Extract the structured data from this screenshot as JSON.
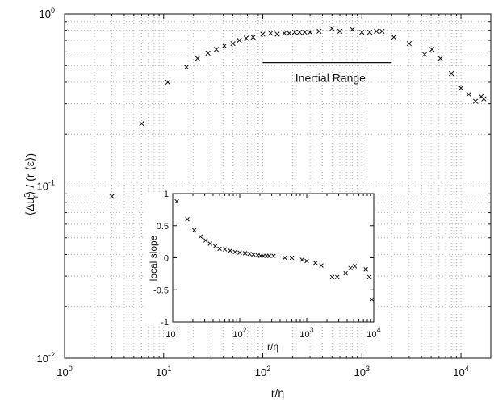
{
  "chart_data": {
    "main": {
      "type": "scatter",
      "marker": "x",
      "xlabel": "r/η",
      "ylabel": "-⟨Δu_r^3⟩ / (r ⟨ε⟩)",
      "xscale": "log",
      "yscale": "log",
      "xlim": [
        1,
        20000
      ],
      "ylim": [
        0.01,
        1
      ],
      "grid": true,
      "x_tick_values": [
        1,
        10,
        100,
        1000,
        10000
      ],
      "y_tick_values": [
        0.01,
        0.1,
        1
      ],
      "x_tick_labels": [
        [
          "10",
          "0"
        ],
        [
          "10",
          "1"
        ],
        [
          "10",
          "2"
        ],
        [
          "10",
          "3"
        ],
        [
          "10",
          "4"
        ]
      ],
      "y_tick_labels": [
        [
          "10",
          "-2"
        ],
        [
          "10",
          "-1"
        ],
        [
          "10",
          "0"
        ]
      ],
      "annotation": {
        "text": "Inertial Range",
        "x_start": 100,
        "x_end": 2000,
        "y": 0.52
      },
      "x": [
        3,
        6,
        11,
        17,
        22,
        28,
        34,
        41,
        50,
        58,
        68,
        80,
        100,
        120,
        140,
        165,
        185,
        210,
        235,
        265,
        300,
        370,
        500,
        600,
        800,
        1000,
        1200,
        1400,
        1600,
        2100,
        3000,
        4300,
        5100,
        6200,
        8000,
        10000,
        12000,
        14000,
        16000,
        17000
      ],
      "y": [
        0.087,
        0.23,
        0.4,
        0.49,
        0.55,
        0.59,
        0.62,
        0.65,
        0.67,
        0.7,
        0.72,
        0.73,
        0.76,
        0.77,
        0.76,
        0.77,
        0.77,
        0.78,
        0.78,
        0.78,
        0.78,
        0.79,
        0.82,
        0.79,
        0.81,
        0.78,
        0.78,
        0.79,
        0.79,
        0.73,
        0.67,
        0.58,
        0.62,
        0.55,
        0.45,
        0.37,
        0.34,
        0.31,
        0.33,
        0.32
      ]
    },
    "inset": {
      "type": "scatter",
      "marker": "x",
      "xlabel": "r/η",
      "ylabel": "local slope",
      "xscale": "log",
      "yscale": "linear",
      "xlim": [
        10,
        10000
      ],
      "ylim": [
        -1,
        1
      ],
      "grid": false,
      "x_tick_values": [
        10,
        100,
        1000,
        10000
      ],
      "x_tick_labels": [
        [
          "10",
          "1"
        ],
        [
          "10",
          "2"
        ],
        [
          "10",
          "3"
        ],
        [
          "10",
          "4"
        ]
      ],
      "y_tick_values": [
        1,
        0.5,
        0,
        -0.5,
        -1
      ],
      "y_tick_labels": [
        "1",
        "0.5",
        "0",
        "-0.5",
        "-1"
      ],
      "x": [
        11.5,
        16.5,
        21,
        26,
        31,
        36,
        43,
        50,
        60,
        72,
        85,
        100,
        120,
        140,
        160,
        185,
        205,
        225,
        250,
        275,
        320,
        470,
        600,
        850,
        1000,
        1350,
        1650,
        2400,
        2850,
        3800,
        4500,
        5200,
        7600,
        8600,
        9400
      ],
      "y": [
        0.88,
        0.6,
        0.43,
        0.33,
        0.27,
        0.22,
        0.18,
        0.14,
        0.13,
        0.11,
        0.09,
        0.08,
        0.07,
        0.06,
        0.05,
        0.04,
        0.03,
        0.03,
        0.03,
        0.03,
        0.03,
        0.0,
        0.0,
        -0.03,
        -0.05,
        -0.08,
        -0.12,
        -0.3,
        -0.3,
        -0.24,
        -0.16,
        -0.13,
        -0.18,
        -0.3,
        -0.65
      ]
    }
  }
}
